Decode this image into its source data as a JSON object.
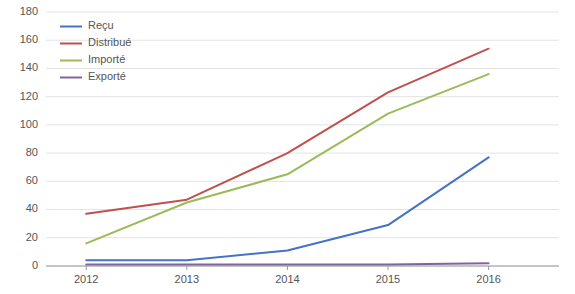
{
  "chart_data": {
    "type": "line",
    "x": [
      2012,
      2013,
      2014,
      2015,
      2016
    ],
    "series": [
      {
        "name": "Reçu",
        "color": "#4472C4",
        "values": [
          4,
          4,
          11,
          29,
          77
        ]
      },
      {
        "name": "Distribué",
        "color": "#C0504D",
        "values": [
          37,
          47,
          80,
          123,
          154
        ]
      },
      {
        "name": "Importé",
        "color": "#9BBB59",
        "values": [
          16,
          45,
          65,
          108,
          136
        ]
      },
      {
        "name": "Exporté",
        "color": "#8064A2",
        "values": [
          1,
          1,
          1,
          1,
          2
        ]
      }
    ],
    "xlim": [
      2011.6,
      2016.7
    ],
    "xticks": [
      2012,
      2013,
      2014,
      2015,
      2016
    ],
    "ylim": [
      0,
      180
    ],
    "yticks": [
      0,
      20,
      40,
      60,
      80,
      100,
      120,
      140,
      160,
      180
    ],
    "grid": true,
    "legend": "upper left"
  }
}
